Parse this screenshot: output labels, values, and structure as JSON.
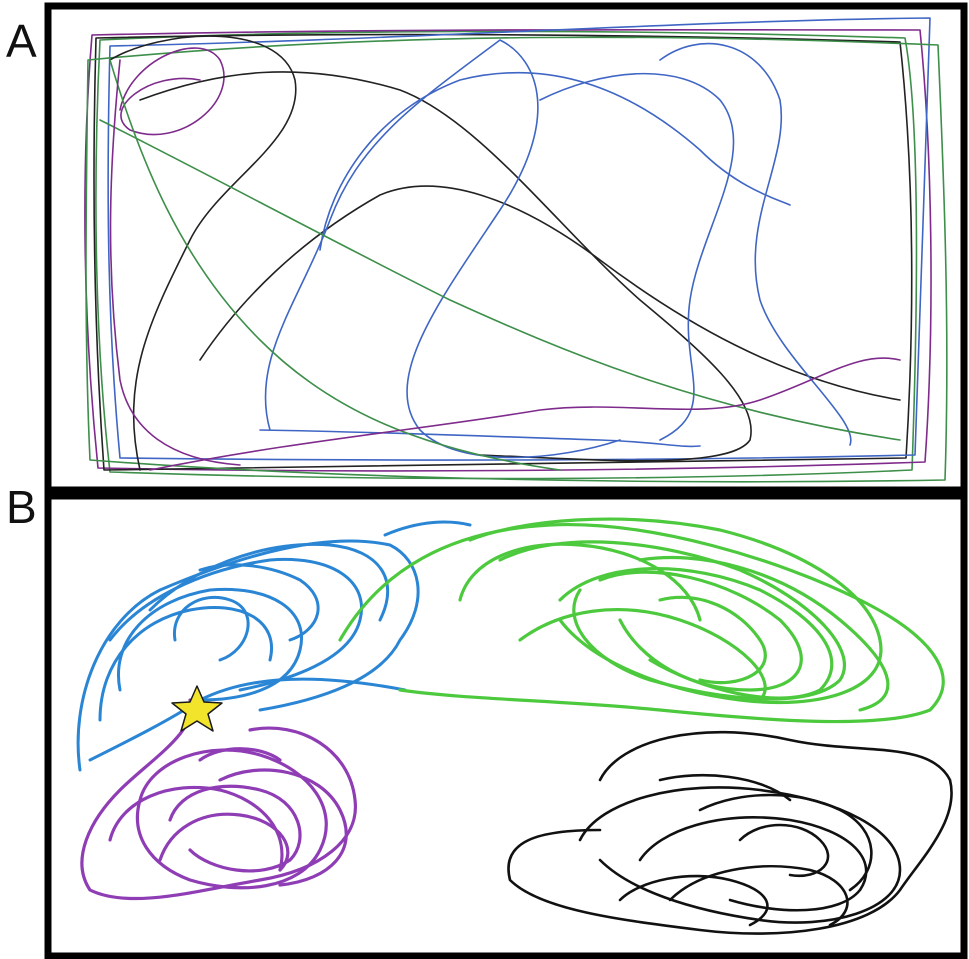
{
  "figure": {
    "panels": [
      {
        "label": "A"
      },
      {
        "label": "B"
      }
    ]
  },
  "colors": {
    "frame": "#000000",
    "panel_a": {
      "black": "#222222",
      "green": "#3d8f4a",
      "purple": "#7e2b8c",
      "blue": "#3f66c4"
    },
    "panel_b": {
      "blue": "#2a86d4",
      "green": "#4cc93d",
      "purple": "#8f3db5",
      "black": "#111111",
      "star": "#f2e32b"
    }
  },
  "marker": {
    "shape": "star-icon"
  }
}
